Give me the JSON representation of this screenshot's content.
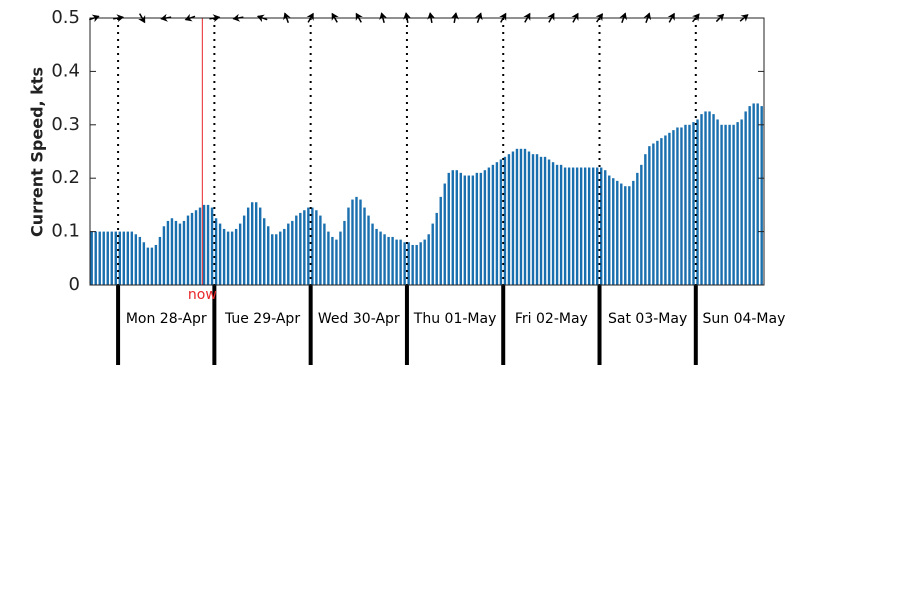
{
  "chart_data": {
    "type": "bar",
    "ylabel": "Current Speed, kts",
    "xlim": [
      0,
      168
    ],
    "xticks": [
      {
        "value": 7,
        "label": "Mon 28-Apr"
      },
      {
        "value": 31,
        "label": "Tue 29-Apr"
      },
      {
        "value": 55,
        "label": "Wed 30-Apr"
      },
      {
        "value": 79,
        "label": "Thu 01-May"
      },
      {
        "value": 103,
        "label": "Fri 02-May"
      },
      {
        "value": 127,
        "label": "Sat 03-May"
      },
      {
        "value": 151,
        "label": "Sun 04-May"
      }
    ],
    "ylim": [
      0,
      0.5
    ],
    "yticks": [
      0,
      0.1,
      0.2,
      0.3,
      0.4,
      0.5
    ],
    "annotation": {
      "text": "now",
      "x": 28,
      "color": "#e8262a"
    },
    "series": [
      {
        "color": "#1a6fae",
        "values": [
          0.1,
          0.1,
          0.1,
          0.1,
          0.1,
          0.1,
          0.1,
          0.1,
          0.1,
          0.1,
          0.1,
          0.095,
          0.09,
          0.08,
          0.07,
          0.07,
          0.075,
          0.09,
          0.11,
          0.12,
          0.125,
          0.12,
          0.115,
          0.12,
          0.13,
          0.135,
          0.14,
          0.145,
          0.15,
          0.15,
          0.145,
          0.125,
          0.115,
          0.105,
          0.1,
          0.1,
          0.105,
          0.115,
          0.13,
          0.145,
          0.155,
          0.155,
          0.145,
          0.125,
          0.11,
          0.095,
          0.095,
          0.1,
          0.105,
          0.115,
          0.12,
          0.13,
          0.135,
          0.14,
          0.145,
          0.145,
          0.14,
          0.13,
          0.115,
          0.1,
          0.09,
          0.085,
          0.1,
          0.12,
          0.145,
          0.16,
          0.165,
          0.16,
          0.145,
          0.13,
          0.115,
          0.105,
          0.1,
          0.095,
          0.09,
          0.09,
          0.085,
          0.085,
          0.08,
          0.08,
          0.075,
          0.075,
          0.08,
          0.085,
          0.095,
          0.115,
          0.135,
          0.165,
          0.19,
          0.21,
          0.215,
          0.215,
          0.21,
          0.205,
          0.205,
          0.205,
          0.21,
          0.21,
          0.215,
          0.22,
          0.225,
          0.23,
          0.235,
          0.24,
          0.245,
          0.25,
          0.255,
          0.255,
          0.255,
          0.25,
          0.245,
          0.245,
          0.24,
          0.24,
          0.235,
          0.23,
          0.225,
          0.225,
          0.22,
          0.22,
          0.22,
          0.22,
          0.22,
          0.22,
          0.22,
          0.22,
          0.22,
          0.22,
          0.215,
          0.205,
          0.2,
          0.195,
          0.19,
          0.185,
          0.185,
          0.195,
          0.21,
          0.225,
          0.245,
          0.26,
          0.265,
          0.27,
          0.275,
          0.28,
          0.285,
          0.29,
          0.295,
          0.295,
          0.3,
          0.3,
          0.305,
          0.31,
          0.32,
          0.325,
          0.325,
          0.32,
          0.31,
          0.3,
          0.3,
          0.3,
          0.3,
          0.305,
          0.31,
          0.325,
          0.335,
          0.34,
          0.34,
          0.335
        ]
      }
    ],
    "arrows": {
      "x": [
        1,
        7,
        13,
        19,
        25,
        31,
        37,
        43,
        49,
        55,
        61,
        67,
        73,
        79,
        85,
        91,
        97,
        103,
        109,
        115,
        121,
        127,
        133,
        139,
        145,
        151,
        157,
        163
      ],
      "directions": [
        70,
        80,
        150,
        260,
        250,
        80,
        260,
        290,
        340,
        30,
        330,
        330,
        345,
        350,
        350,
        10,
        20,
        30,
        30,
        30,
        30,
        35,
        20,
        20,
        30,
        40,
        45,
        50
      ]
    }
  }
}
